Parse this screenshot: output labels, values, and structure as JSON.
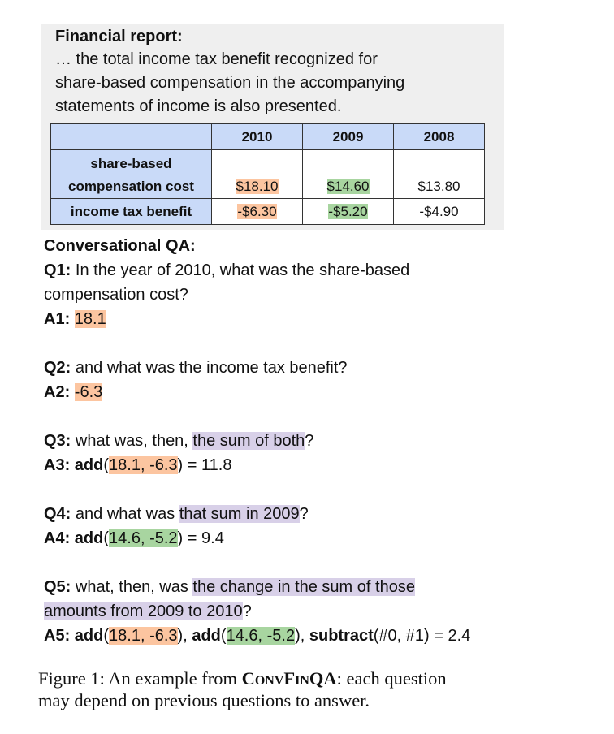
{
  "report": {
    "title": "Financial report:",
    "lines": [
      "… the total income tax benefit recognized for",
      "share-based compensation in the accompanying",
      "statements of income is also presented."
    ],
    "table": {
      "columns": [
        "",
        "2010",
        "2009",
        "2008"
      ],
      "rows": [
        {
          "label_line1": "share-based",
          "label_line2": "compensation cost",
          "values": [
            "$18.10",
            "$14.60",
            "$13.80"
          ]
        },
        {
          "label": "income tax benefit",
          "values": [
            "-$6.30",
            "-$5.20",
            "-$4.90"
          ]
        }
      ]
    }
  },
  "qa": {
    "heading": "Conversational QA:",
    "q1": {
      "label": "Q1:",
      "text_line1": " In the year of 2010, what was the share-based",
      "text_line2": "compensation cost?"
    },
    "a1": {
      "label": "A1:",
      "value": "18.1"
    },
    "q2": {
      "label": "Q2:",
      "text": " and what was the income tax benefit?"
    },
    "a2": {
      "label": "A2:",
      "value": "-6.3"
    },
    "q3": {
      "label": "Q3:",
      "pre": " what was, then, ",
      "hl": "the sum of both",
      "post": "?"
    },
    "a3": {
      "label": "A3:",
      "fn": "add",
      "open": "(",
      "args": "18.1, -6.3",
      "close": ")",
      "result": " = 11.8"
    },
    "q4": {
      "label": "Q4:",
      "pre": " and what was ",
      "hl": "that sum in 2009",
      "post": "?"
    },
    "a4": {
      "label": "A4:",
      "fn": "add",
      "open": "(",
      "args": "14.6, -5.2",
      "close": ")",
      "result": " = 9.4"
    },
    "q5": {
      "label": "Q5:",
      "pre": " what, then, was ",
      "hl1": "the change in the sum of those",
      "hl2": "amounts from 2009 to 2010",
      "post": "?"
    },
    "a5": {
      "label": "A5:",
      "fn1": "add",
      "args1": "18.1, -6.3",
      "fn2": "add",
      "args2": "14.6, -5.2",
      "fn3": "subtract",
      "args3": "(#0, #1)",
      "result": " = 2.4"
    }
  },
  "caption": {
    "prefix": "Figure 1:  An example from ",
    "name": "ConvFinQA",
    "suffix_line1": ": each question",
    "line2": "may depend on previous questions to answer."
  },
  "colors": {
    "orange": "#fcc5a0",
    "green": "#a8d5a0",
    "purple": "#d8d0e8",
    "header_blue": "#c9daf8",
    "panel_gray": "#efefef"
  }
}
